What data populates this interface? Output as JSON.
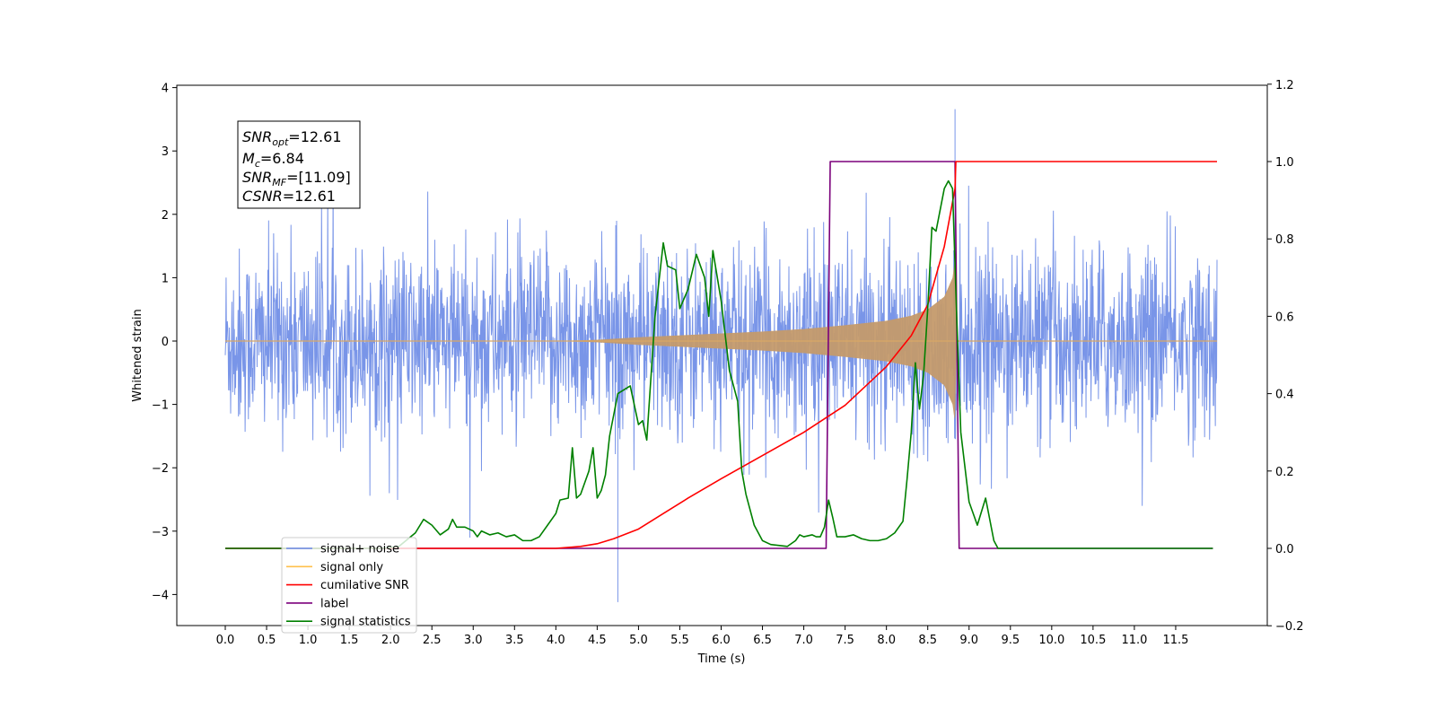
{
  "chart_data": {
    "type": "line",
    "xlabel": "Time (s)",
    "ylabel": "Whitened strain",
    "xlim": [
      -0.6,
      12.6
    ],
    "ylim": [
      -4.5,
      4.1
    ],
    "y2lim": [
      -0.2,
      1.2
    ],
    "x_ticks": [
      0.0,
      0.5,
      1.0,
      1.5,
      2.0,
      2.5,
      3.0,
      3.5,
      4.0,
      4.5,
      5.0,
      5.5,
      6.0,
      6.5,
      7.0,
      7.5,
      8.0,
      8.5,
      9.0,
      9.5,
      10.0,
      10.5,
      11.0,
      11.5
    ],
    "x_tick_labels": [
      "0.0",
      "0.5",
      "1.0",
      "1.5",
      "2.0",
      "2.5",
      "3.0",
      "3.5",
      "4.0",
      "4.5",
      "5.0",
      "5.5",
      "6.0",
      "6.5",
      "7.0",
      "7.5",
      "8.0",
      "8.5",
      "9.0",
      "9.5",
      "10.0",
      "10.5",
      "11.0",
      "11.5"
    ],
    "y_ticks": [
      4,
      3,
      2,
      1,
      0,
      -1,
      -2,
      -3,
      -4
    ],
    "y_tick_labels": [
      "4",
      "3",
      "2",
      "1",
      "0",
      "−1",
      "−2",
      "−3",
      "−4"
    ],
    "y2_ticks": [
      1.2,
      1.0,
      0.8,
      0.6,
      0.4,
      0.2,
      0.0,
      -0.2
    ],
    "y2_tick_labels": [
      "1.2",
      "1.0",
      "0.8",
      "0.6",
      "0.4",
      "0.2",
      "0.0",
      "−0.2"
    ],
    "grid": false,
    "legend_position": "lower-left",
    "annotation": {
      "snr_opt": {
        "label": "SNR",
        "sub": "opt",
        "value": "=12.61"
      },
      "mc": {
        "label": "M",
        "sub": "c",
        "value": "=6.84"
      },
      "snr_mf": {
        "label": "SNR",
        "sub": "MF",
        "value": "=[11.09]"
      },
      "csnr": {
        "label": "CSNR",
        "value": "=12.61"
      }
    },
    "series": [
      {
        "name": "signal+ noise",
        "color": "#6a8ae6",
        "axis": "left",
        "description_values": {
          "x_start": 0.0,
          "x_end": 12.0,
          "typical_range": [
            -2.0,
            2.0
          ],
          "max": 3.66,
          "min": -4.12,
          "max_at": 8.83,
          "min_at": 4.75
        }
      },
      {
        "name": "signal only",
        "color": "#ffc04d",
        "axis": "left",
        "envelope": [
          [
            0.0,
            0.0
          ],
          [
            4.0,
            0.0
          ],
          [
            4.5,
            0.02
          ],
          [
            5.0,
            0.06
          ],
          [
            5.5,
            0.09
          ],
          [
            6.0,
            0.12
          ],
          [
            6.5,
            0.15
          ],
          [
            7.0,
            0.19
          ],
          [
            7.5,
            0.25
          ],
          [
            8.0,
            0.32
          ],
          [
            8.3,
            0.4
          ],
          [
            8.5,
            0.5
          ],
          [
            8.7,
            0.7
          ],
          [
            8.8,
            1.0
          ],
          [
            8.83,
            1.3
          ],
          [
            8.85,
            0.0
          ],
          [
            12.0,
            0.0
          ]
        ]
      },
      {
        "name": "cumilative SNR",
        "color": "#ff0000",
        "axis": "right",
        "points": [
          [
            0.0,
            0.0
          ],
          [
            3.5,
            0.0
          ],
          [
            4.0,
            0.0
          ],
          [
            4.3,
            0.005
          ],
          [
            4.5,
            0.012
          ],
          [
            4.7,
            0.025
          ],
          [
            5.0,
            0.05
          ],
          [
            5.3,
            0.09
          ],
          [
            5.6,
            0.13
          ],
          [
            6.0,
            0.18
          ],
          [
            6.5,
            0.24
          ],
          [
            7.0,
            0.3
          ],
          [
            7.5,
            0.37
          ],
          [
            8.0,
            0.47
          ],
          [
            8.3,
            0.55
          ],
          [
            8.5,
            0.63
          ],
          [
            8.7,
            0.78
          ],
          [
            8.83,
            0.93
          ],
          [
            8.84,
            1.0
          ],
          [
            12.0,
            1.0
          ]
        ]
      },
      {
        "name": "label",
        "color": "#7b007b",
        "axis": "right",
        "points": [
          [
            0.0,
            0.0
          ],
          [
            7.27,
            0.0
          ],
          [
            7.32,
            1.0
          ],
          [
            8.83,
            1.0
          ],
          [
            8.88,
            0.0
          ],
          [
            11.95,
            0.0
          ]
        ]
      },
      {
        "name": "signal statistics",
        "color": "#008000",
        "axis": "right",
        "points": [
          [
            0.0,
            0.0
          ],
          [
            1.0,
            0.0
          ],
          [
            1.5,
            0.0
          ],
          [
            1.9,
            0.0
          ],
          [
            2.1,
            0.005
          ],
          [
            2.3,
            0.04
          ],
          [
            2.4,
            0.075
          ],
          [
            2.5,
            0.06
          ],
          [
            2.6,
            0.035
          ],
          [
            2.7,
            0.05
          ],
          [
            2.75,
            0.075
          ],
          [
            2.8,
            0.055
          ],
          [
            2.9,
            0.055
          ],
          [
            3.0,
            0.045
          ],
          [
            3.05,
            0.03
          ],
          [
            3.1,
            0.045
          ],
          [
            3.2,
            0.035
          ],
          [
            3.3,
            0.04
          ],
          [
            3.4,
            0.03
          ],
          [
            3.5,
            0.035
          ],
          [
            3.6,
            0.02
          ],
          [
            3.7,
            0.02
          ],
          [
            3.8,
            0.03
          ],
          [
            3.9,
            0.06
          ],
          [
            4.0,
            0.09
          ],
          [
            4.05,
            0.125
          ],
          [
            4.15,
            0.13
          ],
          [
            4.2,
            0.26
          ],
          [
            4.25,
            0.13
          ],
          [
            4.3,
            0.14
          ],
          [
            4.4,
            0.2
          ],
          [
            4.45,
            0.26
          ],
          [
            4.5,
            0.13
          ],
          [
            4.55,
            0.15
          ],
          [
            4.6,
            0.19
          ],
          [
            4.65,
            0.29
          ],
          [
            4.75,
            0.4
          ],
          [
            4.9,
            0.42
          ],
          [
            5.0,
            0.32
          ],
          [
            5.05,
            0.33
          ],
          [
            5.1,
            0.28
          ],
          [
            5.2,
            0.6
          ],
          [
            5.3,
            0.79
          ],
          [
            5.35,
            0.73
          ],
          [
            5.45,
            0.72
          ],
          [
            5.5,
            0.62
          ],
          [
            5.6,
            0.67
          ],
          [
            5.7,
            0.76
          ],
          [
            5.8,
            0.7
          ],
          [
            5.85,
            0.6
          ],
          [
            5.9,
            0.77
          ],
          [
            6.0,
            0.64
          ],
          [
            6.1,
            0.46
          ],
          [
            6.2,
            0.38
          ],
          [
            6.25,
            0.2
          ],
          [
            6.3,
            0.14
          ],
          [
            6.4,
            0.06
          ],
          [
            6.5,
            0.02
          ],
          [
            6.6,
            0.01
          ],
          [
            6.8,
            0.005
          ],
          [
            6.9,
            0.02
          ],
          [
            6.95,
            0.035
          ],
          [
            7.0,
            0.03
          ],
          [
            7.1,
            0.035
          ],
          [
            7.15,
            0.03
          ],
          [
            7.2,
            0.03
          ],
          [
            7.25,
            0.055
          ],
          [
            7.3,
            0.125
          ],
          [
            7.35,
            0.08
          ],
          [
            7.4,
            0.03
          ],
          [
            7.5,
            0.03
          ],
          [
            7.6,
            0.035
          ],
          [
            7.7,
            0.025
          ],
          [
            7.8,
            0.02
          ],
          [
            7.9,
            0.02
          ],
          [
            8.0,
            0.025
          ],
          [
            8.1,
            0.04
          ],
          [
            8.2,
            0.07
          ],
          [
            8.25,
            0.18
          ],
          [
            8.3,
            0.3
          ],
          [
            8.35,
            0.48
          ],
          [
            8.4,
            0.36
          ],
          [
            8.45,
            0.45
          ],
          [
            8.5,
            0.62
          ],
          [
            8.55,
            0.83
          ],
          [
            8.6,
            0.82
          ],
          [
            8.7,
            0.93
          ],
          [
            8.75,
            0.95
          ],
          [
            8.8,
            0.93
          ],
          [
            8.85,
            0.6
          ],
          [
            8.9,
            0.3
          ],
          [
            9.0,
            0.12
          ],
          [
            9.1,
            0.06
          ],
          [
            9.2,
            0.13
          ],
          [
            9.3,
            0.02
          ],
          [
            9.35,
            0.0
          ],
          [
            9.4,
            0.0
          ],
          [
            10.0,
            0.0
          ],
          [
            11.0,
            0.0
          ],
          [
            11.95,
            0.0
          ]
        ]
      }
    ]
  }
}
